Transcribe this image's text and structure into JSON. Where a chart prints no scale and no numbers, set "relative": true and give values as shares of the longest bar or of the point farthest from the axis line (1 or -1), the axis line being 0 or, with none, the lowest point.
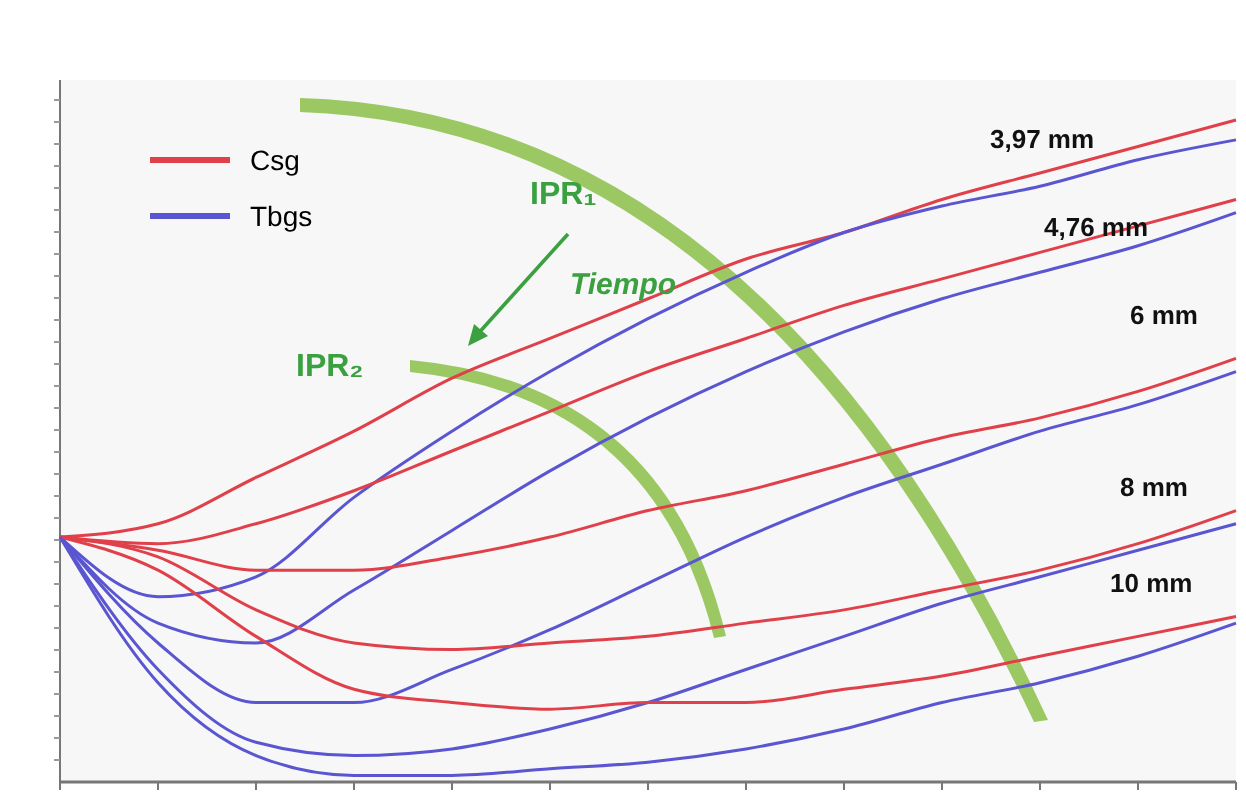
{
  "chart_data": {
    "type": "line",
    "relative": true,
    "legend": "top left",
    "marker": "none",
    "line_style": "solid",
    "categories": [
      null,
      null,
      null,
      null,
      null,
      null,
      null,
      null,
      null,
      null,
      null,
      null,
      null
    ],
    "series": [
      {
        "name": "Csg",
        "color": "#e0404a",
        "values": [
          0.37,
          0.39,
          0.46,
          0.53,
          0.61,
          0.67,
          0.73,
          0.79,
          0.83,
          0.88,
          0.92,
          0.96,
          1
        ]
      },
      {
        "name": "Tbgs",
        "color": "#5a55d0",
        "values": [
          0.37,
          0.28,
          0.31,
          0.43,
          0.53,
          0.62,
          0.7,
          0.77,
          0.83,
          0.87,
          0.9,
          0.94,
          0.97
        ]
      },
      {
        "color": "#e0404a",
        "values": [
          0.37,
          0.36,
          0.39,
          0.44,
          0.5,
          0.56,
          0.62,
          0.67,
          0.72,
          0.76,
          0.8,
          0.84,
          0.88
        ]
      },
      {
        "color": "#5a55d0",
        "values": [
          0.37,
          0.24,
          0.21,
          0.29,
          0.38,
          0.47,
          0.55,
          0.62,
          0.68,
          0.73,
          0.77,
          0.81,
          0.86
        ]
      },
      {
        "color": "#e0404a",
        "values": [
          0.37,
          0.35,
          0.32,
          0.32,
          0.34,
          0.37,
          0.41,
          0.44,
          0.48,
          0.52,
          0.55,
          0.59,
          0.64
        ]
      },
      {
        "color": "#5a55d0",
        "values": [
          0.37,
          0.21,
          0.12,
          0.12,
          0.17,
          0.23,
          0.3,
          0.37,
          0.43,
          0.48,
          0.53,
          0.57,
          0.62
        ]
      },
      {
        "color": "#e0404a",
        "values": [
          0.37,
          0.34,
          0.26,
          0.21,
          0.2,
          0.21,
          0.22,
          0.24,
          0.26,
          0.29,
          0.32,
          0.36,
          0.41
        ]
      },
      {
        "color": "#5a55d0",
        "values": [
          0.37,
          0.17,
          0.06,
          0.04,
          0.05,
          0.08,
          0.12,
          0.17,
          0.22,
          0.27,
          0.31,
          0.35,
          0.39
        ]
      },
      {
        "color": "#e0404a",
        "values": [
          0.37,
          0.32,
          0.22,
          0.14,
          0.12,
          0.11,
          0.12,
          0.12,
          0.14,
          0.16,
          0.19,
          0.22,
          0.25
        ]
      },
      {
        "color": "#5a55d0",
        "values": [
          0.37,
          0.15,
          0.04,
          0.01,
          0.01,
          0.02,
          0.03,
          0.05,
          0.08,
          0.12,
          0.15,
          0.19,
          0.24
        ]
      }
    ],
    "annotations": [
      "IPR₁",
      "Tiempo",
      "IPR₂",
      "3,97 mm",
      "4,76 mm",
      "6 mm",
      "8 mm",
      "10 mm"
    ]
  }
}
